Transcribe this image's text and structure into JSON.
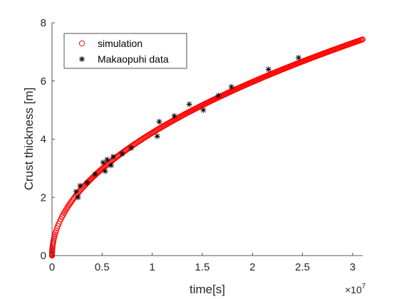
{
  "chart_data": {
    "type": "scatter",
    "xlabel": "time[s]",
    "ylabel": "Crust thickness [m]",
    "xlim": [
      0,
      31000000
    ],
    "ylim": [
      0,
      8
    ],
    "x_tick_labels": [
      "0",
      "0.5",
      "1",
      "1.5",
      "2",
      "2.5",
      "3"
    ],
    "x_tick_values": [
      0,
      5000000,
      10000000,
      15000000,
      20000000,
      25000000,
      30000000
    ],
    "x_exponent_base": "×10",
    "x_exponent_power": "7",
    "y_tick_labels": [
      "0",
      "2",
      "4",
      "6",
      "8"
    ],
    "y_tick_values": [
      0,
      2,
      4,
      6,
      8
    ],
    "grid": false,
    "legend_placement": "top-left",
    "series": [
      {
        "name": "simulation",
        "marker": "circle",
        "color": "#ff0000",
        "model": "y = 0.001334 * sqrt(x)",
        "x": [
          0,
          20000,
          50000,
          100000,
          150000,
          200000,
          300000,
          400000,
          500000,
          750000,
          1000000,
          1500000,
          2000000,
          2500000,
          3000000,
          4000000,
          5000000,
          6000000,
          7000000,
          8000000,
          9000000,
          10000000,
          11000000,
          12000000,
          13000000,
          14000000,
          15000000,
          16000000,
          17000000,
          18000000,
          19000000,
          20000000,
          21000000,
          22000000,
          23000000,
          24000000,
          25000000,
          26000000,
          27000000,
          28000000,
          29000000,
          30000000,
          31000000
        ],
        "y": [
          0,
          0.19,
          0.3,
          0.42,
          0.52,
          0.6,
          0.73,
          0.84,
          0.94,
          1.16,
          1.33,
          1.63,
          1.89,
          2.11,
          2.31,
          2.67,
          2.98,
          3.27,
          3.53,
          3.77,
          4.0,
          4.22,
          4.42,
          4.62,
          4.81,
          4.99,
          5.17,
          5.34,
          5.5,
          5.66,
          5.81,
          5.97,
          6.11,
          6.26,
          6.4,
          6.54,
          6.67,
          6.8,
          6.93,
          7.06,
          7.18,
          7.31,
          7.43
        ]
      },
      {
        "name": "Makaopuhi data",
        "marker": "asterisk",
        "color": "#000000",
        "x": [
          2400000,
          2600000,
          2800000,
          3500000,
          4300000,
          5100000,
          5300000,
          5500000,
          5900000,
          6100000,
          7000000,
          7900000,
          10500000,
          10700000,
          12200000,
          13700000,
          15100000,
          16600000,
          17900000,
          21600000,
          24600000
        ],
        "y": [
          2.2,
          2.0,
          2.4,
          2.5,
          2.8,
          3.2,
          2.9,
          3.3,
          3.1,
          3.4,
          3.5,
          3.7,
          4.1,
          4.6,
          4.8,
          5.2,
          5.0,
          5.5,
          5.8,
          6.4,
          6.8
        ]
      }
    ]
  }
}
